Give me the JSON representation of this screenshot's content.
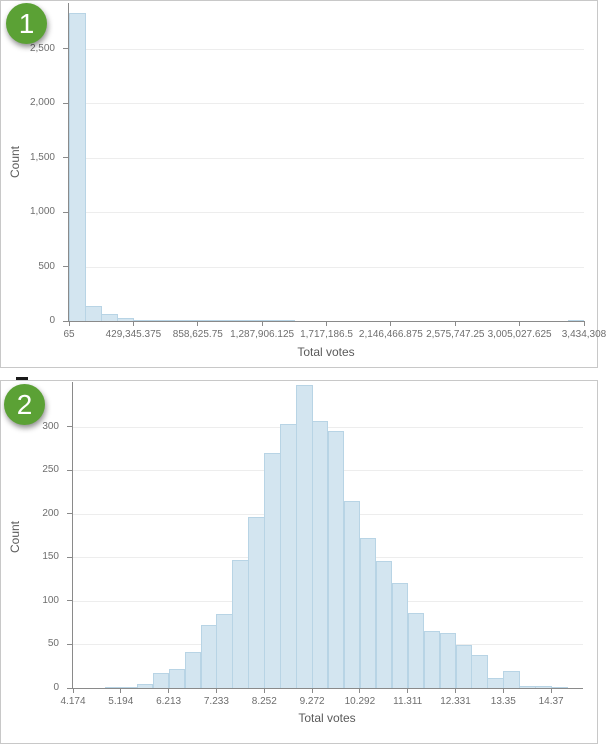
{
  "colors": {
    "bar_fill": "#d3e5f0",
    "bar_border": "#b8d4e5",
    "gridline": "#ededed",
    "axis_line": "#8a8a8a",
    "tick_label": "#6e6e6e",
    "axis_title": "#5a5a5a",
    "panel_border": "#c8c8c8",
    "badge_background": "#5ba135",
    "badge_text_color": "#ffffff"
  },
  "chart_data": [
    {
      "type": "bar",
      "subtype": "histogram",
      "badge": "1",
      "title": "",
      "xlabel": "Total votes",
      "ylabel": "Count",
      "x_axis": {
        "title": "Total votes",
        "tick_labels": [
          "65",
          "429,345.375",
          "858,625.75",
          "1,287,906.125",
          "1,717,186.5",
          "2,146,466.875",
          "2,575,747.25",
          "3,005,027.625",
          "3,434,308"
        ],
        "bins_per_tick": 4
      },
      "y_axis": {
        "title": "Count",
        "ticks": [
          {
            "label": "0",
            "value": 0
          },
          {
            "label": "500",
            "value": 500
          },
          {
            "label": "1,000",
            "value": 1000
          },
          {
            "label": "1,500",
            "value": 1500
          },
          {
            "label": "2,000",
            "value": 2000
          },
          {
            "label": "2,500",
            "value": 2500
          }
        ],
        "max": 2917
      },
      "bins_total": 32,
      "counts": [
        2830,
        139,
        62,
        27,
        13,
        9,
        6,
        4,
        2,
        2,
        3,
        2,
        1,
        1,
        0,
        0,
        0,
        0,
        0,
        0,
        0,
        0,
        0,
        0,
        0,
        0,
        0,
        0,
        0,
        0,
        0,
        1
      ]
    },
    {
      "type": "bar",
      "subtype": "histogram",
      "badge": "2",
      "title": "",
      "xlabel": "Total votes",
      "ylabel": "Count",
      "x_axis": {
        "title": "Total votes",
        "tick_labels": [
          "4.174",
          "5.194",
          "6.213",
          "7.233",
          "8.252",
          "9.272",
          "10.292",
          "11.311",
          "12.331",
          "13.35",
          "14.37"
        ],
        "bins_per_tick": 3
      },
      "y_axis": {
        "title": "Count",
        "ticks": [
          {
            "label": "0",
            "value": 0
          },
          {
            "label": "50",
            "value": 50
          },
          {
            "label": "100",
            "value": 100
          },
          {
            "label": "150",
            "value": 150
          },
          {
            "label": "200",
            "value": 200
          },
          {
            "label": "250",
            "value": 250
          },
          {
            "label": "300",
            "value": 300
          }
        ],
        "max": 351
      },
      "bins_total": 32,
      "counts": [
        0,
        0,
        1,
        1,
        5,
        17,
        22,
        41,
        72,
        85,
        147,
        196,
        270,
        303,
        348,
        306,
        295,
        215,
        172,
        146,
        121,
        86,
        65,
        63,
        49,
        38,
        12,
        19,
        2,
        2,
        1,
        0
      ]
    }
  ]
}
